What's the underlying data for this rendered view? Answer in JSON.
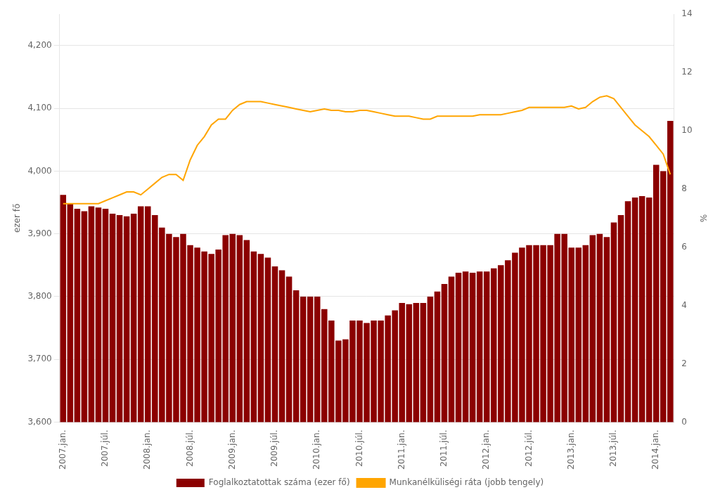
{
  "chart_data": {
    "type": "bar",
    "ylabel": "ezer fő",
    "y2label": "%",
    "categories": [
      "2007.jan.",
      null,
      null,
      null,
      null,
      null,
      "2007.júl.",
      null,
      null,
      null,
      null,
      null,
      "2008.jan.",
      null,
      null,
      null,
      null,
      null,
      "2008.júl.",
      null,
      null,
      null,
      null,
      null,
      "2009.jan.",
      null,
      null,
      null,
      null,
      null,
      "2009.júl.",
      null,
      null,
      null,
      null,
      null,
      "2010.jan.",
      null,
      null,
      null,
      null,
      null,
      "2010.júl.",
      null,
      null,
      null,
      null,
      null,
      "2011.jan.",
      null,
      null,
      null,
      null,
      null,
      "2011.júl.",
      null,
      null,
      null,
      null,
      null,
      "2012.jan.",
      null,
      null,
      null,
      null,
      null,
      "2012.júl.",
      null,
      null,
      null,
      null,
      null,
      "2013.jan.",
      null,
      null,
      null,
      null,
      null,
      "2013.júl.",
      null,
      null,
      null,
      null,
      null,
      "2014.jan.",
      null,
      null
    ],
    "series": [
      {
        "name": "Foglalkoztatottak száma (ezer fő)",
        "type": "bar",
        "color": "#8B0000",
        "values": [
          3962,
          3948,
          3940,
          3936,
          3944,
          3942,
          3940,
          3932,
          3930,
          3928,
          3932,
          3944,
          3944,
          3930,
          3910,
          3900,
          3895,
          3900,
          3882,
          3878,
          3872,
          3868,
          3875,
          3898,
          3900,
          3898,
          3890,
          3872,
          3868,
          3862,
          3848,
          3842,
          3832,
          3810,
          3800,
          3800,
          3800,
          3780,
          3762,
          3730,
          3732,
          3762,
          3762,
          3758,
          3762,
          3762,
          3770,
          3778,
          3790,
          3788,
          3790,
          3790,
          3800,
          3808,
          3820,
          3832,
          3838,
          3840,
          3838,
          3840,
          3840,
          3845,
          3850,
          3858,
          3870,
          3878,
          3882,
          3882,
          3882,
          3882,
          3900,
          3900,
          3878,
          3878,
          3882,
          3898,
          3900,
          3895,
          3918,
          3930,
          3952,
          3958,
          3960,
          3958,
          4010,
          4000,
          4080
        ]
      },
      {
        "name": "Munkanélküliségi ráta (jobb tengely)",
        "type": "line",
        "color": "#FFA500",
        "axis": "y2",
        "values": [
          7.5,
          7.5,
          7.5,
          7.5,
          7.5,
          7.5,
          7.6,
          7.7,
          7.8,
          7.9,
          7.9,
          7.8,
          8.0,
          8.2,
          8.4,
          8.5,
          8.5,
          8.3,
          9.0,
          9.5,
          9.8,
          10.2,
          10.4,
          10.4,
          10.7,
          10.9,
          11.0,
          11.0,
          11.0,
          10.95,
          10.9,
          10.85,
          10.8,
          10.75,
          10.7,
          10.65,
          10.7,
          10.75,
          10.7,
          10.7,
          10.65,
          10.65,
          10.7,
          10.7,
          10.65,
          10.6,
          10.55,
          10.5,
          10.5,
          10.5,
          10.45,
          10.4,
          10.4,
          10.5,
          10.5,
          10.5,
          10.5,
          10.5,
          10.5,
          10.55,
          10.55,
          10.55,
          10.55,
          10.6,
          10.65,
          10.7,
          10.8,
          10.8,
          10.8,
          10.8,
          10.8,
          10.8,
          10.85,
          10.75,
          10.8,
          11.0,
          11.15,
          11.2,
          11.1,
          10.8,
          10.5,
          10.2,
          10.0,
          9.8,
          9.5,
          9.2,
          8.5
        ]
      }
    ],
    "ylim": [
      3600,
      4250
    ],
    "yticks": [
      3600,
      3700,
      3800,
      3900,
      4000,
      4100,
      4200
    ],
    "y2lim": [
      0,
      14
    ],
    "y2ticks": [
      0,
      2,
      4,
      6,
      8,
      10,
      12,
      14
    ],
    "grid": true,
    "legend": "bottom"
  }
}
